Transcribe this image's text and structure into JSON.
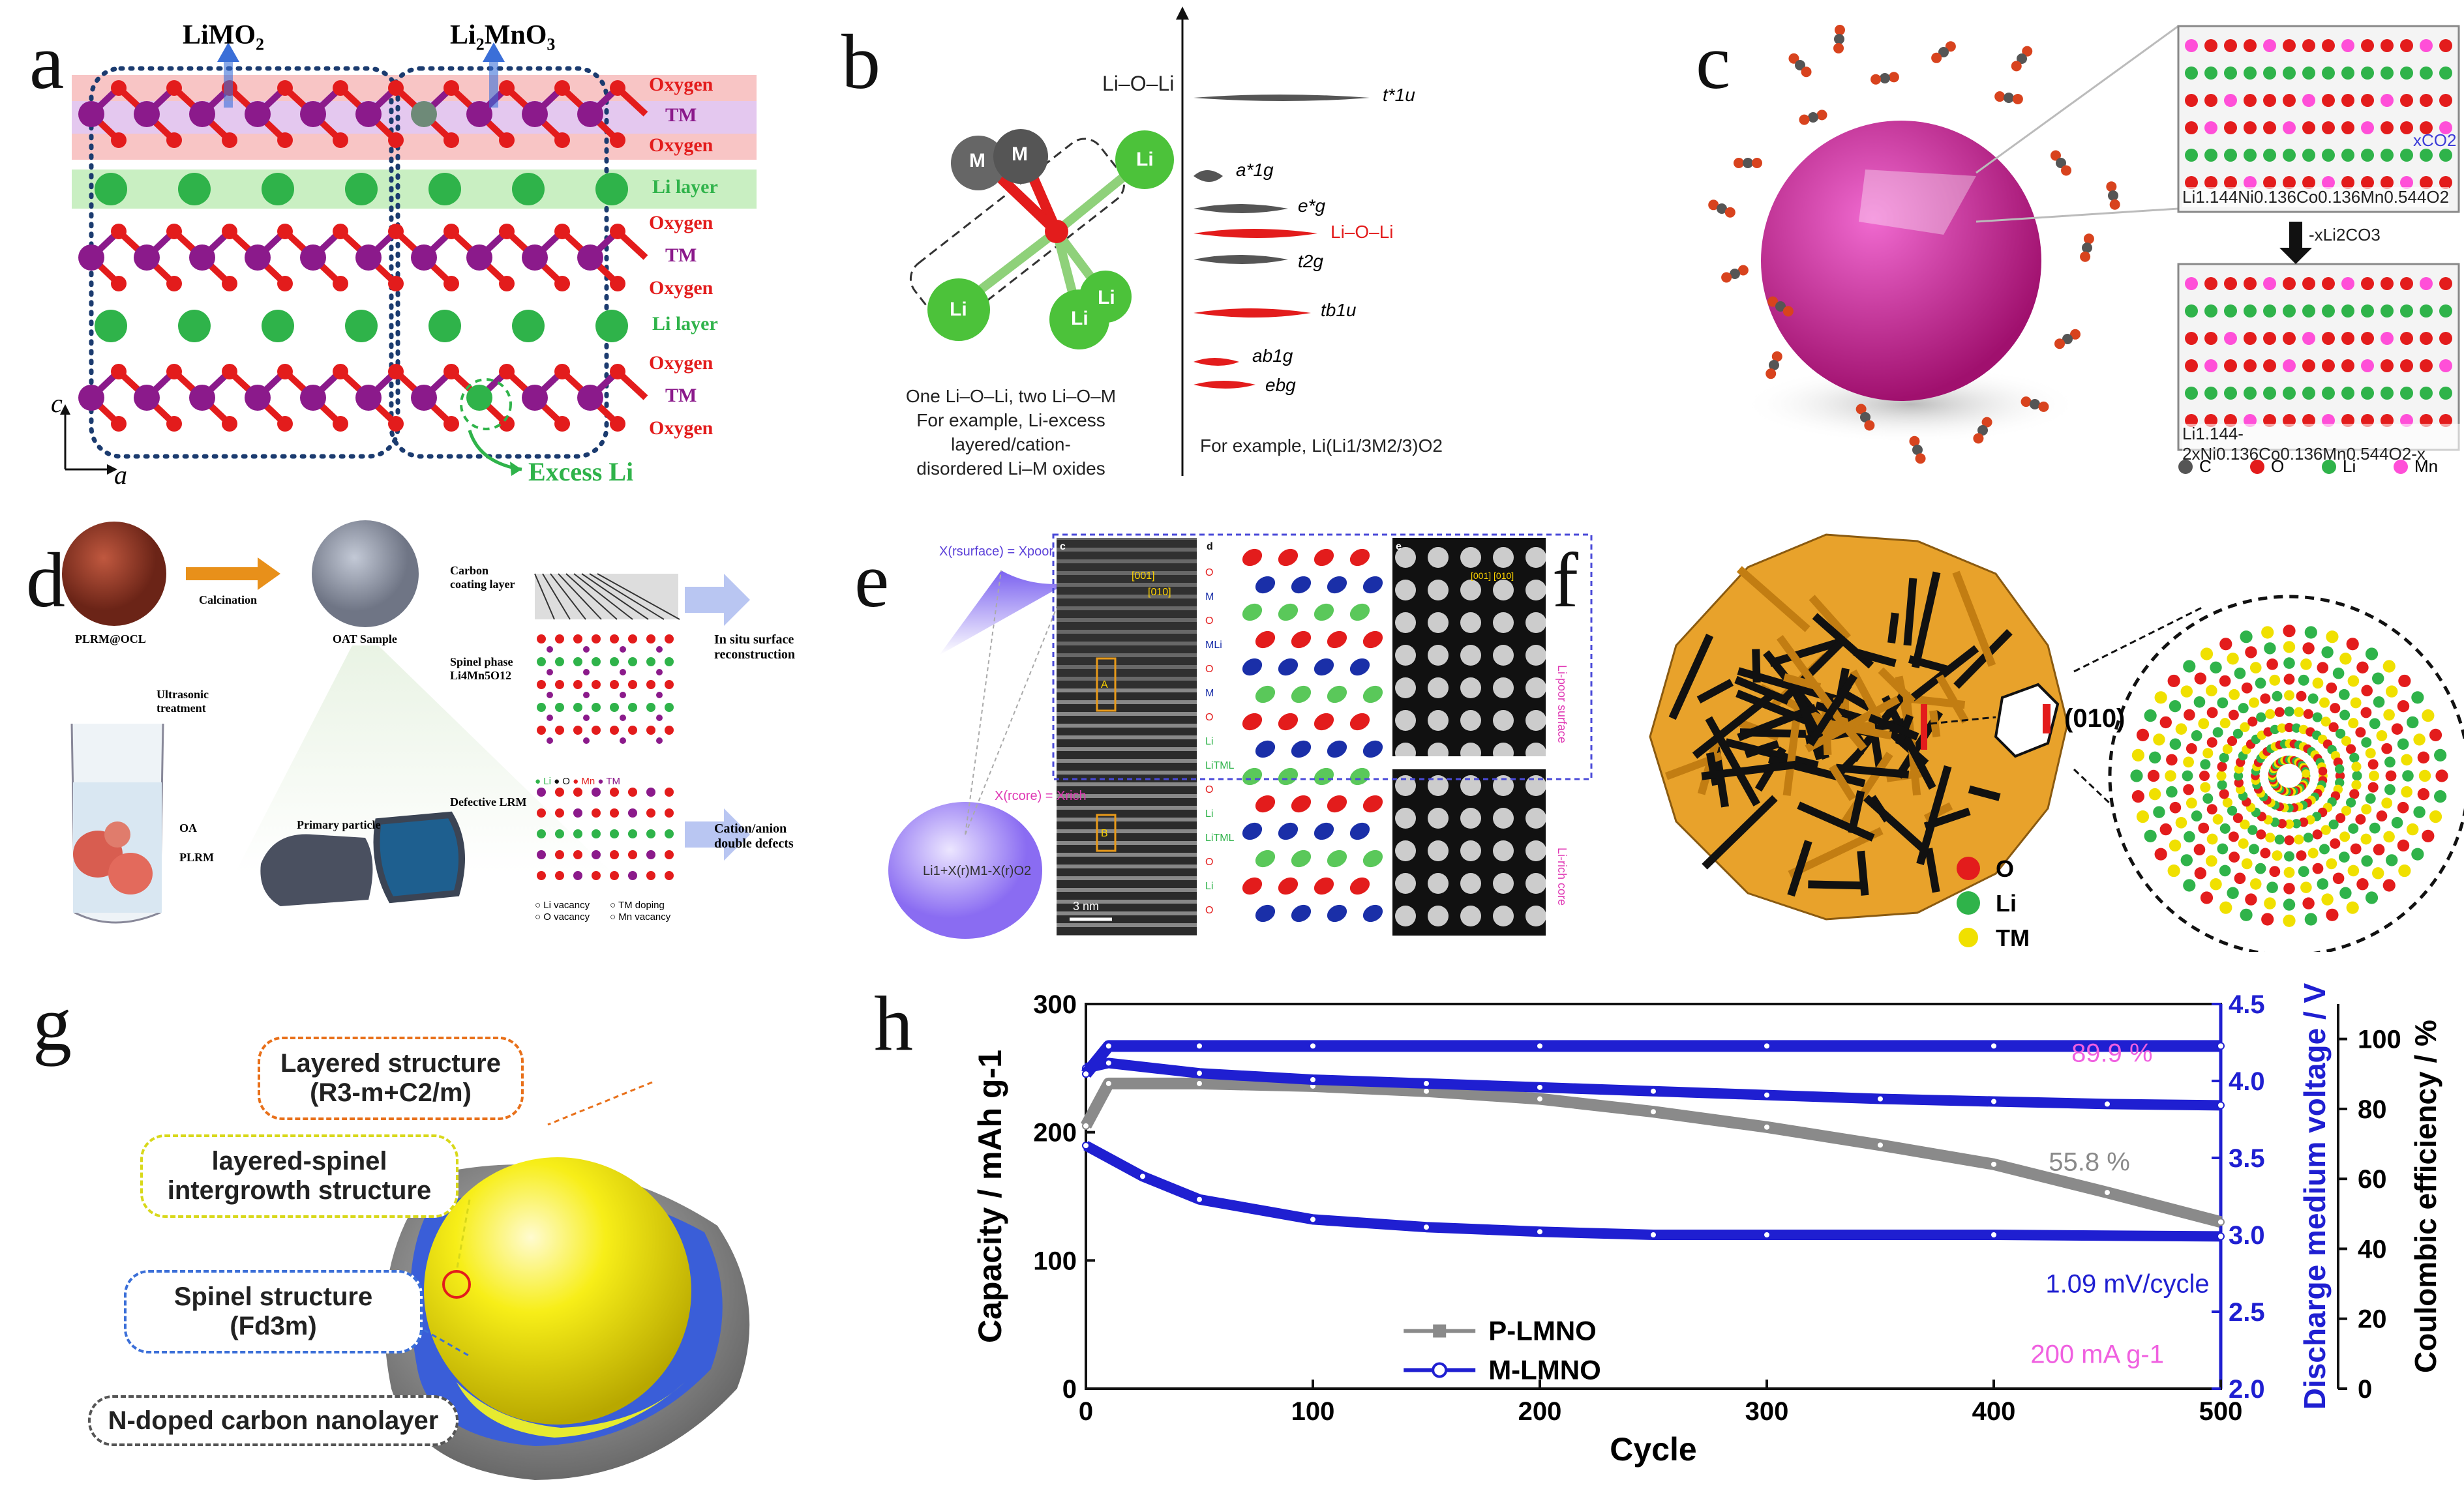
{
  "colors": {
    "oxygen": "#e31c1c",
    "tm": "#8b1a8b",
    "li": "#2fb34a",
    "blue": "#1f1fd1",
    "gray": "#8a8a8a",
    "pink": "#ff4fd8",
    "orange": "#e8a22b"
  },
  "panel_a": {
    "label": "a",
    "titles": [
      "LiMO",
      "Li",
      "MnO"
    ],
    "rows": [
      "Oxygen",
      "TM",
      "Oxygen",
      "Li layer",
      "Oxygen",
      "TM",
      "Oxygen",
      "Li layer",
      "Oxygen",
      "TM",
      "Oxygen"
    ],
    "axis_c": "c",
    "axis_a": "a",
    "excess": "Excess Li"
  },
  "panel_b": {
    "label": "b",
    "title": "Li–O–Li",
    "atoms": [
      "M",
      "M",
      "Li",
      "Li",
      "Li",
      "Li"
    ],
    "caption1": "One Li–O–Li, two Li–O–M",
    "caption2": "For example, Li-excess layered/cation-",
    "caption3": "disordered Li–M oxides",
    "levels": [
      "t*1u",
      "a*1g",
      "e*g",
      "Li–O–Li",
      "t2g",
      "tb1u",
      "ab1g",
      "ebg"
    ],
    "caption_right": "For example, Li(Li1/3M2/3)O2"
  },
  "panel_c": {
    "label": "c",
    "formula_top": "Li1.144Ni0.136Co0.136Mn0.544O2",
    "co2": "xCO2",
    "arrow_text": "-xLi2CO3",
    "formula_bottom": "Li1.144-2xNi0.136Co0.136Mn0.544O2-x",
    "legend": [
      "C",
      "O",
      "Li",
      "Mn"
    ]
  },
  "panel_d": {
    "label": "d",
    "texts": [
      "Calcination",
      "PLRM@OCL",
      "OAT Sample",
      "Ultrasonic treatment",
      "OA",
      "PLRM",
      "Primary particle",
      "Defective LRM",
      "Carbon coating layer",
      "Spinel phase Li4Mn5O12",
      "In situ surface reconstruction",
      "Cation/anion double defects",
      "Li",
      "O",
      "Mn",
      "TM",
      "Li vacancy",
      "TM doping",
      "O vacancy",
      "Mn vacancy"
    ]
  },
  "panel_e": {
    "label": "e",
    "texts": [
      "X(rsurface) = Xpoor",
      "X(rcore) = Xrich",
      "Li1+X(r)M1-X(r)O2",
      "c",
      "d",
      "e",
      "[001]",
      "[010]",
      "A",
      "B",
      "3 nm",
      "O",
      "M",
      "O",
      "MLi",
      "O",
      "M",
      "O",
      "Li",
      "LiTML",
      "O",
      "Li",
      "LiTML",
      "O",
      "Li",
      "O",
      "Li-poor surface",
      "Li-rich core"
    ]
  },
  "panel_f": {
    "label": "f",
    "facet": "(010)",
    "legend": [
      "O",
      "Li",
      "TM"
    ]
  },
  "panel_g": {
    "label": "g",
    "box1": [
      "Layered structure",
      "(R3-m+C2/m)"
    ],
    "box2": [
      "layered-spinel",
      "intergrowth structure"
    ],
    "box3": [
      "Spinel structure",
      "(Fd3m)"
    ],
    "box4": "N-doped carbon nanolayer"
  },
  "chart_data": {
    "type": "line",
    "title": "",
    "panel_label": "h",
    "xlabel": "Cycle",
    "ylabel_left": "Capacity / mAh g-1",
    "ylabel_mid": "Discharge medium voltage / V",
    "ylabel_right": "Coulombic efficiency / %",
    "xlim": [
      0,
      500
    ],
    "ylim_left": [
      0,
      300
    ],
    "ylim_mid": [
      2.0,
      4.5
    ],
    "ylim_right": [
      0,
      110
    ],
    "x_ticks": [
      0,
      100,
      200,
      300,
      400,
      500
    ],
    "left_ticks": [
      0,
      100,
      200,
      300
    ],
    "mid_ticks": [
      2.0,
      2.5,
      3.0,
      3.5,
      4.0,
      4.5
    ],
    "right_ticks": [
      0,
      20,
      40,
      60,
      80,
      100
    ],
    "legend": [
      "P-LMNO",
      "M-LMNO"
    ],
    "annotations": [
      "89.9 %",
      "55.8 %",
      "1.09 mV/cycle",
      "200 mA g-1"
    ],
    "series": [
      {
        "name": "P-LMNO capacity",
        "axis": "left",
        "x": [
          0,
          10,
          50,
          100,
          150,
          200,
          250,
          300,
          350,
          400,
          450,
          500
        ],
        "values": [
          205,
          238,
          238,
          236,
          232,
          226,
          216,
          204,
          190,
          175,
          153,
          130
        ]
      },
      {
        "name": "M-LMNO capacity",
        "axis": "left",
        "x": [
          0,
          10,
          50,
          100,
          150,
          200,
          250,
          300,
          350,
          400,
          450,
          500
        ],
        "values": [
          250,
          254,
          246,
          241,
          238,
          235,
          232,
          229,
          226,
          224,
          222,
          221
        ]
      },
      {
        "name": "M-LMNO discharge medium voltage",
        "axis": "mid",
        "x": [
          0,
          25,
          50,
          100,
          150,
          200,
          250,
          300,
          400,
          500
        ],
        "values": [
          3.58,
          3.38,
          3.23,
          3.1,
          3.05,
          3.02,
          3.0,
          3.0,
          3.0,
          2.99
        ]
      },
      {
        "name": "M-LMNO coulombic efficiency",
        "axis": "right",
        "x": [
          0,
          10,
          50,
          100,
          200,
          300,
          400,
          500
        ],
        "values": [
          90,
          98,
          98,
          98,
          98,
          98,
          98,
          98
        ]
      }
    ]
  }
}
